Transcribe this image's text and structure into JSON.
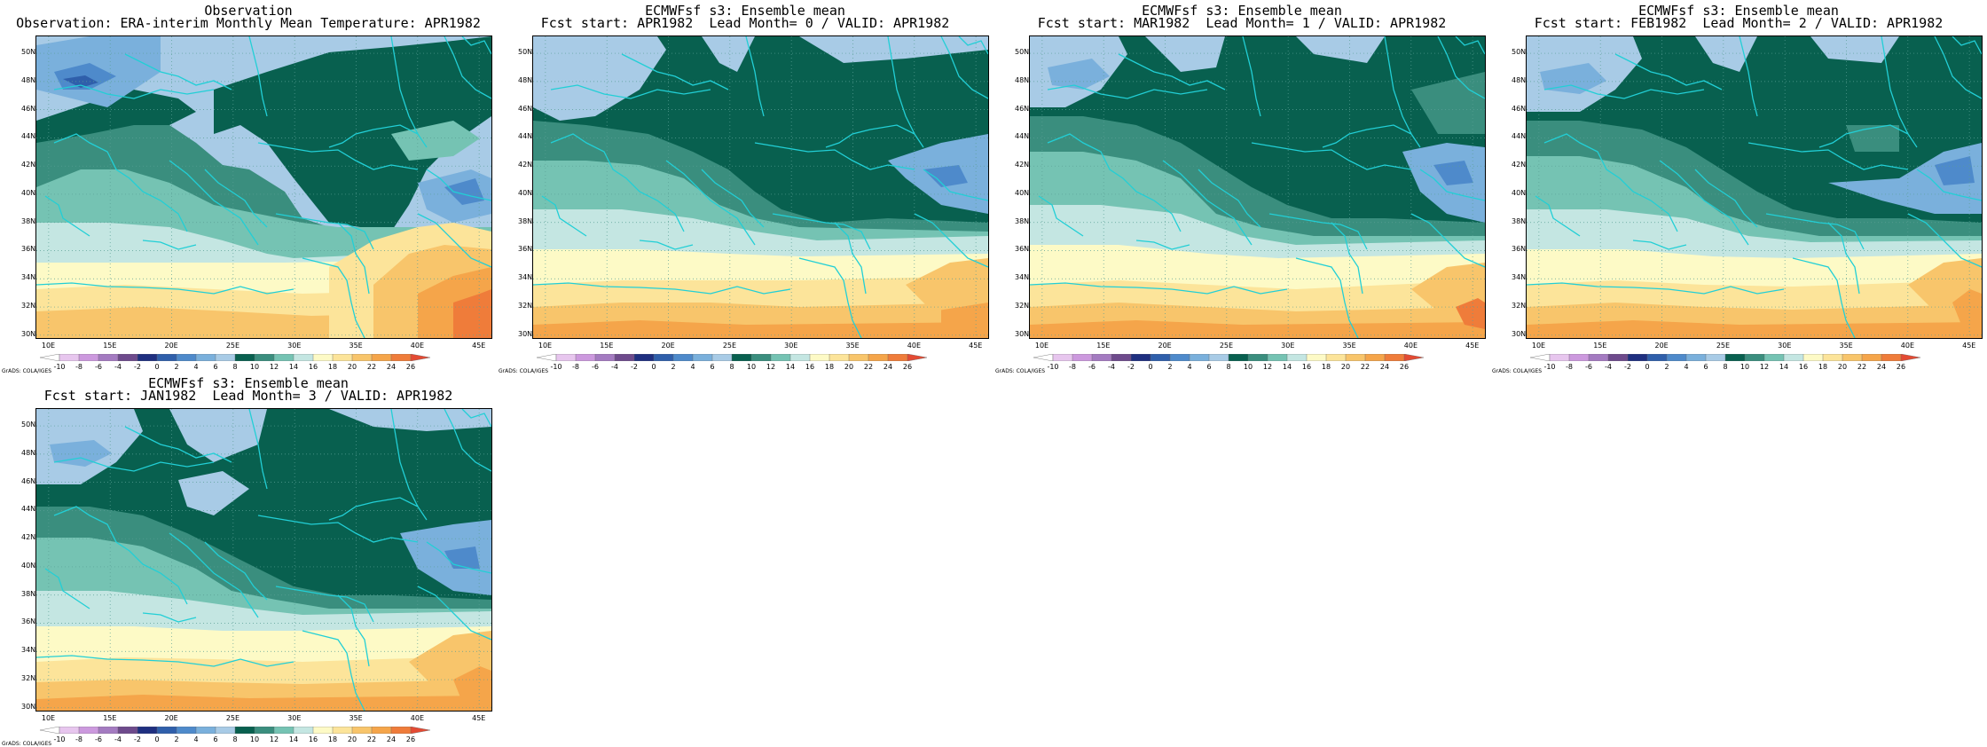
{
  "panels": [
    {
      "title1": "Observation",
      "title2": "Observation: ERA-interim Monthly Mean Temperature: APR1982"
    },
    {
      "title1": "ECMWFsf s3: Ensemble mean",
      "title2": "Fcst start: APR1982  Lead Month= 0 / VALID: APR1982"
    },
    {
      "title1": "ECMWFsf s3: Ensemble mean",
      "title2": "Fcst start: MAR1982  Lead Month= 1 / VALID: APR1982"
    },
    {
      "title1": "ECMWFsf s3: Ensemble mean",
      "title2": "Fcst start: FEB1982  Lead Month= 2 / VALID: APR1982"
    },
    {
      "title1": "ECMWFsf s3: Ensemble mean",
      "title2": "Fcst start: JAN1982  Lead Month= 3 / VALID: APR1982"
    }
  ],
  "map": {
    "lon_labels": [
      "10E",
      "15E",
      "20E",
      "25E",
      "30E",
      "35E",
      "40E",
      "45E"
    ],
    "lat_labels": [
      "30N",
      "32N",
      "34N",
      "36N",
      "38N",
      "40N",
      "42N",
      "44N",
      "46N",
      "48N",
      "50N"
    ],
    "lon_range": [
      9,
      46
    ],
    "lat_range": [
      29.8,
      51.2
    ],
    "grid": "dotted"
  },
  "colorbar": {
    "labels": [
      "-10",
      "-8",
      "-6",
      "-4",
      "-2",
      "0",
      "2",
      "4",
      "6",
      "8",
      "10",
      "12",
      "14",
      "16",
      "18",
      "20",
      "22",
      "24",
      "26"
    ],
    "colors": [
      "#ffffff",
      "#e7c6ee",
      "#cc99de",
      "#a47bc1",
      "#6e4a8c",
      "#1f2f80",
      "#2f5fab",
      "#4e8acb",
      "#7ab0dc",
      "#a8cbe6",
      "#08604f",
      "#3a8e7e",
      "#75c3b3",
      "#c4e6e2",
      "#fdfac6",
      "#fce49a",
      "#f8c56b",
      "#f5a54a",
      "#ef7c3a",
      "#e34a33"
    ],
    "credit": "GrADS: COLA/IGES"
  }
}
